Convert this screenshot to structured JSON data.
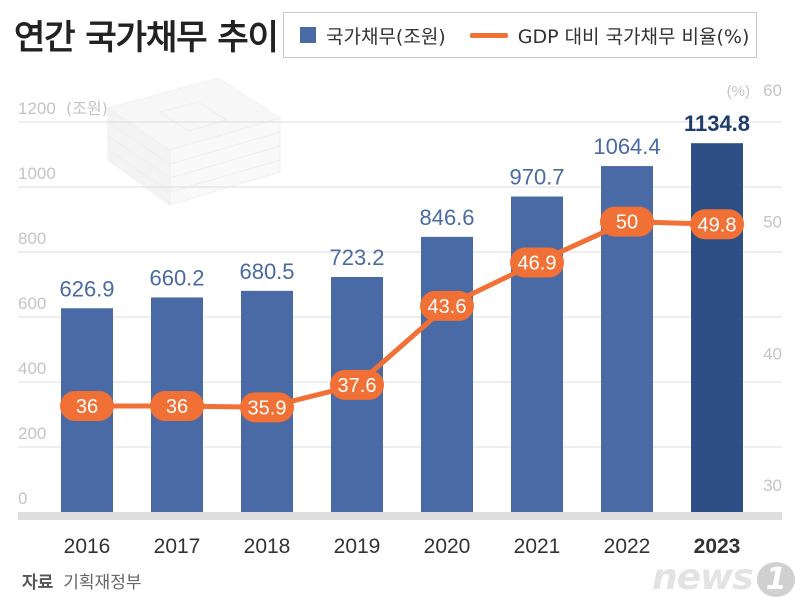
{
  "title": "연간 국가채무 추이",
  "legend": {
    "bar_label": "국가채무(조원)",
    "line_label": "GDP 대비 국가채무 비율(%)"
  },
  "source": {
    "label": "자료",
    "value": "기획재정부"
  },
  "logo": {
    "text": "news",
    "mark": "1"
  },
  "colors": {
    "bar": "#4a6aa5",
    "bar_highlight": "#2d4f85",
    "line": "#f07035",
    "gridline": "#dcdcdc",
    "axis_text": "#c4c4c4"
  },
  "illustration": "money-stack-icon",
  "chart_data": {
    "type": "bar",
    "categories": [
      "2016",
      "2017",
      "2018",
      "2019",
      "2020",
      "2021",
      "2022",
      "2023"
    ],
    "highlight_category": "2023",
    "series": [
      {
        "name": "국가채무(조원)",
        "type": "bar",
        "axis": "left",
        "values": [
          626.9,
          660.2,
          680.5,
          723.2,
          846.6,
          970.7,
          1064.4,
          1134.8
        ],
        "labels": [
          "626.9",
          "660.2",
          "680.5",
          "723.2",
          "846.6",
          "970.7",
          "1064.4",
          "1134.8"
        ]
      },
      {
        "name": "GDP 대비 국가채무 비율(%)",
        "type": "line",
        "axis": "right",
        "values": [
          36,
          36,
          35.9,
          37.6,
          43.6,
          46.9,
          50,
          49.8
        ],
        "labels": [
          "36",
          "36",
          "35.9",
          "37.6",
          "43.6",
          "46.9",
          "50",
          "49.8"
        ]
      }
    ],
    "y_left": {
      "unit": "(조원)",
      "ticks": [
        "0",
        "200",
        "400",
        "600",
        "800",
        "1000",
        "1200"
      ],
      "ylim": [
        0,
        1200
      ]
    },
    "y_right": {
      "unit": "(%)",
      "ticks": [
        "30",
        "40",
        "50",
        "60"
      ],
      "ylim": [
        30,
        60
      ]
    },
    "grid": true,
    "legend_position": "top"
  }
}
